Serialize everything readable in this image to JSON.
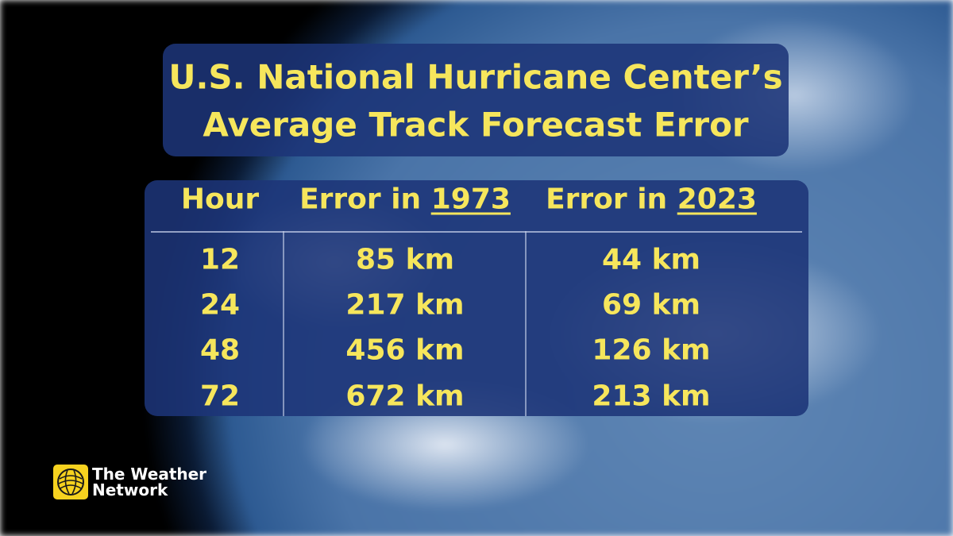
{
  "title": {
    "lines": [
      "U.S. National Hurricane Center’s",
      "Average Track Forecast Error"
    ]
  },
  "table": {
    "header": [
      {
        "text": "Hour"
      },
      {
        "text": "Error in",
        "year": "1973"
      },
      {
        "text": "Error in",
        "year": "2023"
      }
    ],
    "rows": [
      [
        "12",
        "85 km",
        "44 km"
      ],
      [
        "24",
        "217 km",
        "69 km"
      ],
      [
        "48",
        "456 km",
        "126 km"
      ],
      [
        "72",
        "672 km",
        "213 km"
      ]
    ]
  },
  "logo": {
    "lines": [
      "The Weather",
      "Network"
    ]
  }
}
